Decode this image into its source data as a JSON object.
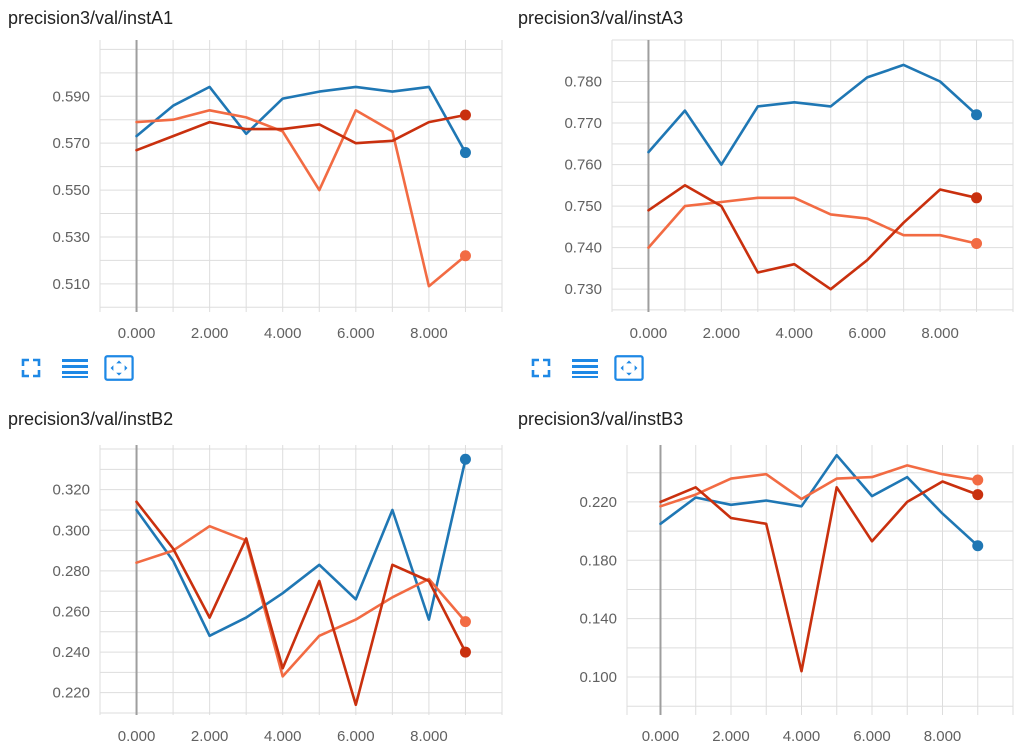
{
  "colors": {
    "blue": "#1f77b4",
    "dark_red": "#c9300e",
    "orange": "#f26b43",
    "grid": "#dddddd",
    "zero_axis": "#9e9e9e",
    "toolbar_icon": "#1e88e5"
  },
  "toolbar_icons": [
    "fit-domain-icon",
    "toggle-lines-icon",
    "expand-chart-icon"
  ],
  "chart_data": [
    {
      "type": "line",
      "title": "precision3/val/instA1",
      "x": [
        0,
        1,
        2,
        3,
        4,
        5,
        6,
        7,
        8,
        9
      ],
      "xlim": [
        -1,
        10
      ],
      "ylim": [
        0.498,
        0.614
      ],
      "xticks": [
        0,
        2,
        4,
        6,
        8
      ],
      "xtick_labels": [
        "0.000",
        "2.000",
        "4.000",
        "6.000",
        "8.000"
      ],
      "yticks": [
        0.51,
        0.53,
        0.55,
        0.57,
        0.59
      ],
      "ytick_labels": [
        "0.510",
        "0.530",
        "0.550",
        "0.570",
        "0.590"
      ],
      "series": [
        {
          "color": "#1f77b4",
          "values": [
            0.573,
            0.586,
            0.594,
            0.574,
            0.589,
            0.592,
            0.594,
            0.592,
            0.594,
            0.566
          ]
        },
        {
          "color": "#f26b43",
          "values": [
            0.579,
            0.58,
            0.584,
            0.581,
            0.575,
            0.55,
            0.584,
            0.575,
            0.509,
            0.522
          ]
        },
        {
          "color": "#c9300e",
          "values": [
            0.567,
            0.573,
            0.579,
            0.576,
            0.576,
            0.578,
            0.57,
            0.571,
            0.579,
            0.582
          ]
        }
      ]
    },
    {
      "type": "line",
      "title": "precision3/val/instA3",
      "x": [
        0,
        1,
        2,
        3,
        4,
        5,
        6,
        7,
        8,
        9
      ],
      "xlim": [
        -1,
        10
      ],
      "ylim": [
        0.7245,
        0.79
      ],
      "xticks": [
        0,
        2,
        4,
        6,
        8
      ],
      "xtick_labels": [
        "0.000",
        "2.000",
        "4.000",
        "6.000",
        "8.000"
      ],
      "yticks": [
        0.73,
        0.74,
        0.75,
        0.76,
        0.77,
        0.78
      ],
      "ytick_labels": [
        "0.730",
        "0.740",
        "0.750",
        "0.760",
        "0.770",
        "0.780"
      ],
      "series": [
        {
          "color": "#1f77b4",
          "values": [
            0.763,
            0.773,
            0.76,
            0.774,
            0.775,
            0.774,
            0.781,
            0.784,
            0.78,
            0.772
          ]
        },
        {
          "color": "#f26b43",
          "values": [
            0.74,
            0.75,
            0.751,
            0.752,
            0.752,
            0.748,
            0.747,
            0.743,
            0.743,
            0.741
          ]
        },
        {
          "color": "#c9300e",
          "values": [
            0.749,
            0.755,
            0.75,
            0.734,
            0.736,
            0.73,
            0.737,
            0.746,
            0.754,
            0.752
          ]
        }
      ]
    },
    {
      "type": "line",
      "title": "precision3/val/instB2",
      "x": [
        0,
        1,
        2,
        3,
        4,
        5,
        6,
        7,
        8,
        9
      ],
      "xlim": [
        -1,
        10
      ],
      "ylim": [
        0.209,
        0.342
      ],
      "xticks": [
        0,
        2,
        4,
        6,
        8
      ],
      "xtick_labels": [
        "0.000",
        "2.000",
        "4.000",
        "6.000",
        "8.000"
      ],
      "yticks": [
        0.22,
        0.24,
        0.26,
        0.28,
        0.3,
        0.32
      ],
      "ytick_labels": [
        "0.220",
        "0.240",
        "0.260",
        "0.280",
        "0.300",
        "0.320"
      ],
      "series": [
        {
          "color": "#1f77b4",
          "values": [
            0.31,
            0.285,
            0.248,
            0.257,
            0.269,
            0.283,
            0.266,
            0.31,
            0.256,
            0.335
          ]
        },
        {
          "color": "#f26b43",
          "values": [
            0.284,
            0.29,
            0.302,
            0.295,
            0.228,
            0.248,
            0.256,
            0.267,
            0.276,
            0.255
          ]
        },
        {
          "color": "#c9300e",
          "values": [
            0.314,
            0.291,
            0.257,
            0.296,
            0.232,
            0.275,
            0.214,
            0.283,
            0.275,
            0.24
          ]
        }
      ]
    },
    {
      "type": "line",
      "title": "precision3/val/instB3",
      "x": [
        0,
        1,
        2,
        3,
        4,
        5,
        6,
        7,
        8,
        9
      ],
      "xlim": [
        -0.95,
        10
      ],
      "ylim": [
        0.074,
        0.259
      ],
      "xticks": [
        0,
        2,
        4,
        6,
        8
      ],
      "xtick_labels": [
        "0.000",
        "2.000",
        "4.000",
        "6.000",
        "8.000"
      ],
      "yticks": [
        0.1,
        0.14,
        0.18,
        0.22
      ],
      "ytick_labels": [
        "0.100",
        "0.140",
        "0.180",
        "0.220"
      ],
      "series": [
        {
          "color": "#1f77b4",
          "values": [
            0.205,
            0.223,
            0.218,
            0.221,
            0.217,
            0.252,
            0.224,
            0.237,
            0.212,
            0.19
          ]
        },
        {
          "color": "#f26b43",
          "values": [
            0.217,
            0.225,
            0.236,
            0.239,
            0.222,
            0.236,
            0.237,
            0.245,
            0.239,
            0.235
          ]
        },
        {
          "color": "#c9300e",
          "values": [
            0.22,
            0.23,
            0.209,
            0.205,
            0.104,
            0.23,
            0.193,
            0.22,
            0.234,
            0.225
          ]
        }
      ]
    }
  ]
}
